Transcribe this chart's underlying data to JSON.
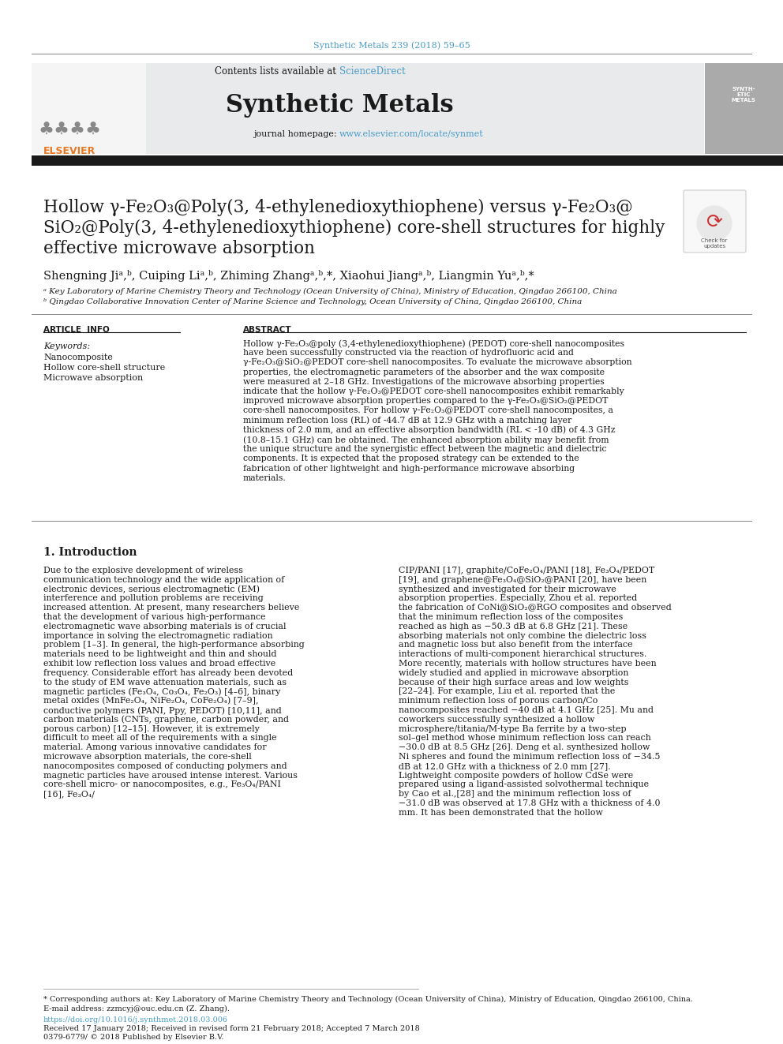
{
  "page_bg": "#ffffff",
  "header_citation": "Synthetic Metals 239 (2018) 59–65",
  "header_citation_color": "#4a9cc7",
  "journal_header_bg": "#e8eaec",
  "journal_name": "Synthetic Metals",
  "contents_text": "Contents lists available at ",
  "sciencedirect_text": "ScienceDirect",
  "sciencedirect_color": "#4a9cc7",
  "journal_homepage_label": "journal homepage: ",
  "journal_url": "www.elsevier.com/locate/synmet",
  "journal_url_color": "#4a9cc7",
  "dark_bar_color": "#1a1a1a",
  "title_line1": "Hollow γ-Fe₂O₃@Poly(3, 4-ethylenedioxythiophene) versus γ-Fe₂O₃@",
  "title_line2": "SiO₂@Poly(3, 4-ethylenedioxythiophene) core-shell structures for highly",
  "title_line3": "effective microwave absorption",
  "title_fontsize": 15.5,
  "author_fontsize": 10,
  "affil_a": "ᵃ Key Laboratory of Marine Chemistry Theory and Technology (Ocean University of China), Ministry of Education, Qingdao 266100, China",
  "affil_b": "ᵇ Qingdao Collaborative Innovation Center of Marine Science and Technology, Ocean University of China, Qingdao 266100, China",
  "affil_fontsize": 7.5,
  "article_info_header": "ARTICLE  INFO",
  "abstract_header": "ABSTRACT",
  "keywords_label": "Keywords:",
  "keywords": [
    "Nanocomposite",
    "Hollow core-shell structure",
    "Microwave absorption"
  ],
  "abstract_text": "Hollow γ-Fe₂O₃@poly (3,4-ethylenedioxythiophene) (PEDOT) core-shell nanocomposites have been successfully constructed via the reaction of hydrofluoric acid and γ-Fe₂O₃@SiO₂@PEDOT core-shell nanocomposites. To evaluate the microwave absorption properties, the electromagnetic parameters of the absorber and the wax composite were measured at 2–18 GHz. Investigations of the microwave absorbing properties indicate that the hollow γ-Fe₂O₃@PEDOT core-shell nanocomposites exhibit remarkably improved microwave absorption properties compared to the γ-Fe₂O₃@SiO₂@PEDOT core-shell nanocomposites. For hollow γ-Fe₂O₃@PEDOT core-shell nanocomposites, a minimum reflection loss (RL) of -44.7 dB at 12.9 GHz with a matching layer thickness of 2.0 mm, and an effective absorption bandwidth (RL < -10 dB) of 4.3 GHz (10.8–15.1 GHz) can be obtained. The enhanced absorption ability may benefit from the unique structure and the synergistic effect between the magnetic and dielectric components. It is expected that the proposed strategy can be extended to the fabrication of other lightweight and high-performance microwave absorbing materials.",
  "intro_header": "1. Introduction",
  "intro_col1": "Due to the explosive development of wireless communication technology and the wide application of electronic devices, serious electromagnetic (EM) interference and pollution problems are receiving increased attention. At present, many researchers believe that the development of various high-performance electromagnetic wave absorbing materials is of crucial importance in solving the electromagnetic radiation problem [1–3]. In general, the high-performance absorbing materials need to be lightweight and thin and should exhibit low reflection loss values and broad effective frequency. Considerable effort has already been devoted to the study of EM wave attenuation materials, such as magnetic particles (Fe₃O₄, Co₃O₄, Fe₂O₃) [4–6], binary metal oxides (MnFe₂O₄, NiFe₂O₄, CoFe₂O₄) [7–9], conductive polymers (PANI, Ppy, PEDOT) [10,11], and carbon materials (CNTs, graphene, carbon powder, and porous carbon) [12–15]. However, it is extremely difficult to meet all of the requirements with a single material. Among various innovative candidates for microwave absorption materials, the core-shell nanocomposites composed of conducting polymers and magnetic particles have aroused intense interest. Various core-shell micro- or nanocomposites, e.g., Fe₃O₄/PANI [16], Fe₃O₄/",
  "intro_col2": "CIP/PANI [17], graphite/CoFe₂O₄/PANI [18], Fe₃O₄/PEDOT [19], and graphene@Fe₃O₄@SiO₂@PANI [20], have been synthesized and investigated for their microwave absorption properties. Especially, Zhou et al. reported the fabrication of CoNi@SiO₂@RGO composites and observed that the minimum reflection loss of the composites reached as high as −50.3 dB at 6.8 GHz [21]. These absorbing materials not only combine the dielectric loss and magnetic loss but also benefit from the interface interactions of multi-component hierarchical structures. More recently, materials with hollow structures have been widely studied and applied in microwave absorption because of their high surface areas and low weights [22–24]. For example, Liu et al. reported that the minimum reflection loss of porous carbon/Co nanocomposites reached −40 dB at 4.1 GHz [25]. Mu and coworkers successfully synthesized a hollow microsphere/titania/M-type Ba ferrite by a two-step sol–gel method whose minimum reflection loss can reach −30.0 dB at 8.5 GHz [26]. Deng et al. synthesized hollow Ni spheres and found the minimum reflection loss of −34.5 dB at 12.0 GHz with a thickness of 2.0 mm [27]. Lightweight composite powders of hollow CdSe were prepared using a ligand-assisted solvothermal technique by Cao et al.,[28] and the minimum reflection loss of −31.0 dB was observed at 17.8 GHz with a thickness of 4.0 mm. It has been demonstrated that the hollow",
  "footer_note": "* Corresponding authors at: Key Laboratory of Marine Chemistry Theory and Technology (Ocean University of China), Ministry of Education, Qingdao 266100, China.",
  "footer_email": "E-mail address: zzmcyj@ouc.edu.cn (Z. Zhang).",
  "footer_doi": "https://doi.org/10.1016/j.synthmet.2018.03.006",
  "footer_received": "Received 17 January 2018; Received in revised form 21 February 2018; Accepted 7 March 2018",
  "footer_issn": "0379-6779/ © 2018 Published by Elsevier B.V.",
  "link_color": "#4a9cc7"
}
